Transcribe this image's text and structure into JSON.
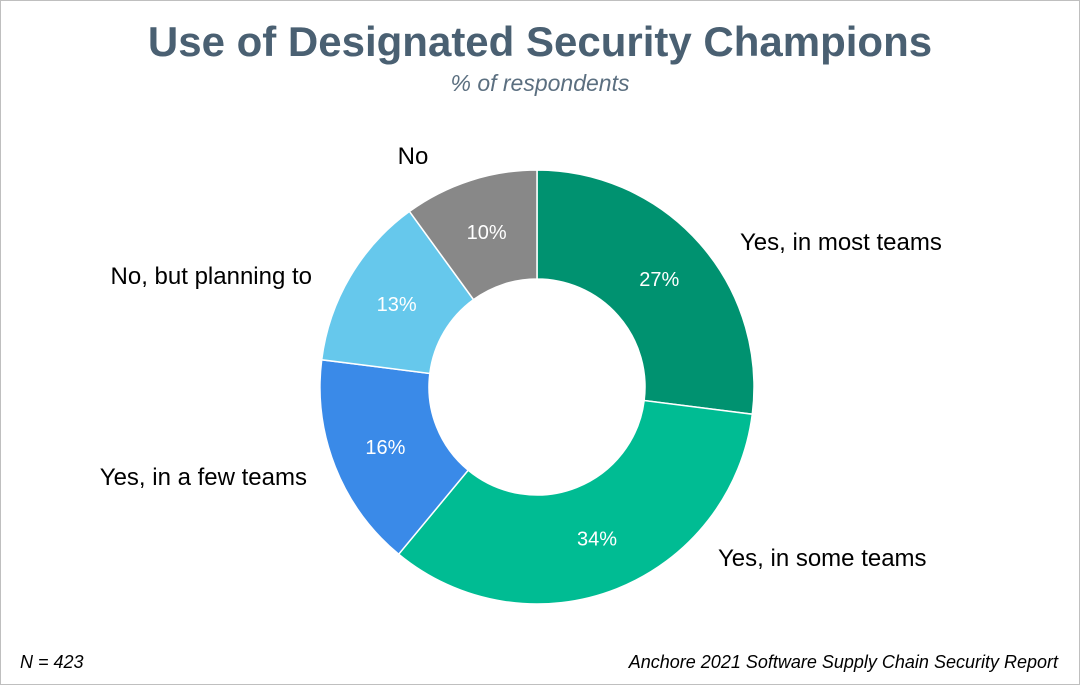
{
  "chart_data": {
    "type": "pie",
    "title": "Use of Designated Security Champions",
    "subtitle": "% of respondents",
    "slices": [
      {
        "label": "Yes, in most teams",
        "value": 27,
        "value_label": "27%",
        "color": "#009270"
      },
      {
        "label": "Yes, in some teams",
        "value": 34,
        "value_label": "34%",
        "color": "#00bc93"
      },
      {
        "label": "Yes, in a few teams",
        "value": 16,
        "value_label": "16%",
        "color": "#3a8ae8"
      },
      {
        "label": "No, but planning to",
        "value": 13,
        "value_label": "13%",
        "color": "#66c8ec"
      },
      {
        "label": "No",
        "value": 10,
        "value_label": "10%",
        "color": "#888888"
      }
    ],
    "start": "top",
    "direction": "clockwise",
    "donut": true
  },
  "footer": {
    "sample": "N = 423",
    "source": "Anchore 2021 Software Supply Chain Security Report"
  }
}
